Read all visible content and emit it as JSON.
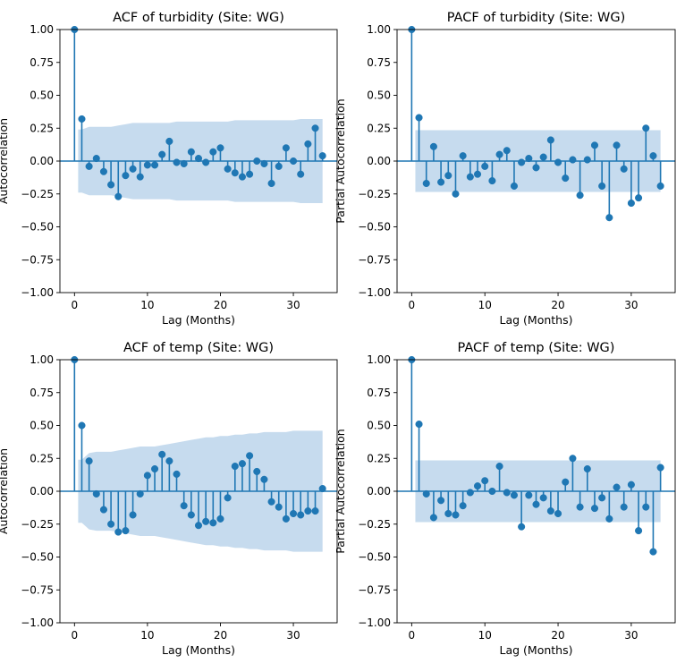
{
  "figure": {
    "background": "#ffffff"
  },
  "style": {
    "accent": "#1f77b4",
    "band": "#c6dbee"
  },
  "chart_data": [
    {
      "type": "scatter",
      "subtype": "stem",
      "title": "ACF of turbidity (Site: WG)",
      "xlabel": "Lag (Months)",
      "ylabel": "Autocorrelation",
      "xlim": [
        -2,
        36
      ],
      "ylim": [
        -1,
        1
      ],
      "xticks": [
        0,
        10,
        20,
        30
      ],
      "yticks": [
        -1.0,
        -0.75,
        -0.5,
        -0.25,
        0.0,
        0.25,
        0.5,
        0.75,
        1.0
      ],
      "ytick_labels": [
        "−1.00",
        "−0.75",
        "−0.50",
        "−0.25",
        "0.00",
        "0.25",
        "0.50",
        "0.75",
        "1.00"
      ],
      "xtick_labels": [
        "0",
        "10",
        "20",
        "30"
      ],
      "lags": [
        0,
        1,
        2,
        3,
        4,
        5,
        6,
        7,
        8,
        9,
        10,
        11,
        12,
        13,
        14,
        15,
        16,
        17,
        18,
        19,
        20,
        21,
        22,
        23,
        24,
        25,
        26,
        27,
        28,
        29,
        30,
        31,
        32,
        33,
        34
      ],
      "values": [
        1.0,
        0.32,
        -0.04,
        0.02,
        -0.08,
        -0.18,
        -0.27,
        -0.11,
        -0.06,
        -0.12,
        -0.03,
        -0.03,
        0.05,
        0.15,
        -0.01,
        -0.02,
        0.07,
        0.02,
        -0.01,
        0.07,
        0.1,
        -0.06,
        -0.09,
        -0.12,
        -0.1,
        0.0,
        -0.02,
        -0.17,
        -0.04,
        0.1,
        0.0,
        -0.1,
        0.13,
        0.25,
        0.04
      ],
      "confidence_band": [
        0.0,
        0.24,
        0.26,
        0.26,
        0.26,
        0.26,
        0.27,
        0.28,
        0.29,
        0.29,
        0.29,
        0.29,
        0.29,
        0.29,
        0.3,
        0.3,
        0.3,
        0.3,
        0.3,
        0.3,
        0.3,
        0.3,
        0.31,
        0.31,
        0.31,
        0.31,
        0.31,
        0.31,
        0.31,
        0.31,
        0.31,
        0.32,
        0.32,
        0.32,
        0.32
      ],
      "grid": false
    },
    {
      "type": "scatter",
      "subtype": "stem",
      "title": "PACF of turbidity (Site: WG)",
      "xlabel": "Lag (Months)",
      "ylabel": "Partial Autocorrelation",
      "xlim": [
        -2,
        36
      ],
      "ylim": [
        -1,
        1
      ],
      "xticks": [
        0,
        10,
        20,
        30
      ],
      "yticks": [
        -1.0,
        -0.75,
        -0.5,
        -0.25,
        0.0,
        0.25,
        0.5,
        0.75,
        1.0
      ],
      "ytick_labels": [
        "−1.00",
        "−0.75",
        "−0.50",
        "−0.25",
        "0.00",
        "0.25",
        "0.50",
        "0.75",
        "1.00"
      ],
      "xtick_labels": [
        "0",
        "10",
        "20",
        "30"
      ],
      "lags": [
        0,
        1,
        2,
        3,
        4,
        5,
        6,
        7,
        8,
        9,
        10,
        11,
        12,
        13,
        14,
        15,
        16,
        17,
        18,
        19,
        20,
        21,
        22,
        23,
        24,
        25,
        26,
        27,
        28,
        29,
        30,
        31,
        32,
        33,
        34
      ],
      "values": [
        1.0,
        0.33,
        -0.17,
        0.11,
        -0.16,
        -0.11,
        -0.25,
        0.04,
        -0.12,
        -0.1,
        -0.04,
        -0.15,
        0.05,
        0.08,
        -0.19,
        -0.01,
        0.02,
        -0.05,
        0.03,
        0.16,
        -0.01,
        -0.13,
        0.01,
        -0.26,
        0.01,
        0.12,
        -0.19,
        -0.43,
        0.12,
        -0.06,
        -0.32,
        -0.28,
        0.25,
        0.04,
        -0.19
      ],
      "confidence_band": [
        0.0,
        0.235,
        0.235,
        0.235,
        0.235,
        0.235,
        0.235,
        0.235,
        0.235,
        0.235,
        0.235,
        0.235,
        0.235,
        0.235,
        0.235,
        0.235,
        0.235,
        0.235,
        0.235,
        0.235,
        0.235,
        0.235,
        0.235,
        0.235,
        0.235,
        0.235,
        0.235,
        0.235,
        0.235,
        0.235,
        0.235,
        0.235,
        0.235,
        0.235,
        0.235
      ],
      "grid": false
    },
    {
      "type": "scatter",
      "subtype": "stem",
      "title": "ACF of temp (Site: WG)",
      "xlabel": "Lag (Months)",
      "ylabel": "Autocorrelation",
      "xlim": [
        -2,
        36
      ],
      "ylim": [
        -1,
        1
      ],
      "xticks": [
        0,
        10,
        20,
        30
      ],
      "yticks": [
        -1.0,
        -0.75,
        -0.5,
        -0.25,
        0.0,
        0.25,
        0.5,
        0.75,
        1.0
      ],
      "ytick_labels": [
        "−1.00",
        "−0.75",
        "−0.50",
        "−0.25",
        "0.00",
        "0.25",
        "0.50",
        "0.75",
        "1.00"
      ],
      "xtick_labels": [
        "0",
        "10",
        "20",
        "30"
      ],
      "lags": [
        0,
        1,
        2,
        3,
        4,
        5,
        6,
        7,
        8,
        9,
        10,
        11,
        12,
        13,
        14,
        15,
        16,
        17,
        18,
        19,
        20,
        21,
        22,
        23,
        24,
        25,
        26,
        27,
        28,
        29,
        30,
        31,
        32,
        33,
        34
      ],
      "values": [
        1.0,
        0.5,
        0.23,
        -0.02,
        -0.14,
        -0.25,
        -0.31,
        -0.3,
        -0.18,
        -0.02,
        0.12,
        0.17,
        0.28,
        0.23,
        0.13,
        -0.11,
        -0.18,
        -0.26,
        -0.23,
        -0.24,
        -0.21,
        -0.05,
        0.19,
        0.21,
        0.27,
        0.15,
        0.09,
        -0.08,
        -0.12,
        -0.21,
        -0.17,
        -0.18,
        -0.15,
        -0.15,
        0.02
      ],
      "confidence_band": [
        0.0,
        0.24,
        0.29,
        0.3,
        0.3,
        0.3,
        0.31,
        0.32,
        0.33,
        0.34,
        0.34,
        0.34,
        0.35,
        0.36,
        0.37,
        0.38,
        0.39,
        0.4,
        0.41,
        0.41,
        0.42,
        0.42,
        0.43,
        0.43,
        0.44,
        0.44,
        0.45,
        0.45,
        0.45,
        0.45,
        0.46,
        0.46,
        0.46,
        0.46,
        0.46
      ],
      "grid": false
    },
    {
      "type": "scatter",
      "subtype": "stem",
      "title": "PACF of temp (Site: WG)",
      "xlabel": "Lag (Months)",
      "ylabel": "Partial Autocorrelation",
      "xlim": [
        -2,
        36
      ],
      "ylim": [
        -1,
        1
      ],
      "xticks": [
        0,
        10,
        20,
        30
      ],
      "yticks": [
        -1.0,
        -0.75,
        -0.5,
        -0.25,
        0.0,
        0.25,
        0.5,
        0.75,
        1.0
      ],
      "ytick_labels": [
        "−1.00",
        "−0.75",
        "−0.50",
        "−0.25",
        "0.00",
        "0.25",
        "0.50",
        "0.75",
        "1.00"
      ],
      "xtick_labels": [
        "0",
        "10",
        "20",
        "30"
      ],
      "lags": [
        0,
        1,
        2,
        3,
        4,
        5,
        6,
        7,
        8,
        9,
        10,
        11,
        12,
        13,
        14,
        15,
        16,
        17,
        18,
        19,
        20,
        21,
        22,
        23,
        24,
        25,
        26,
        27,
        28,
        29,
        30,
        31,
        32,
        33,
        34
      ],
      "values": [
        1.0,
        0.51,
        -0.02,
        -0.2,
        -0.07,
        -0.17,
        -0.18,
        -0.11,
        -0.01,
        0.04,
        0.08,
        0.0,
        0.19,
        -0.01,
        -0.03,
        -0.27,
        -0.03,
        -0.1,
        -0.05,
        -0.15,
        -0.17,
        0.07,
        0.25,
        -0.12,
        0.17,
        -0.13,
        -0.05,
        -0.21,
        0.03,
        -0.12,
        0.05,
        -0.3,
        -0.12,
        -0.46,
        0.18
      ],
      "confidence_band": [
        0.0,
        0.235,
        0.235,
        0.235,
        0.235,
        0.235,
        0.235,
        0.235,
        0.235,
        0.235,
        0.235,
        0.235,
        0.235,
        0.235,
        0.235,
        0.235,
        0.235,
        0.235,
        0.235,
        0.235,
        0.235,
        0.235,
        0.235,
        0.235,
        0.235,
        0.235,
        0.235,
        0.235,
        0.235,
        0.235,
        0.235,
        0.235,
        0.235,
        0.235,
        0.235
      ],
      "grid": false
    }
  ]
}
